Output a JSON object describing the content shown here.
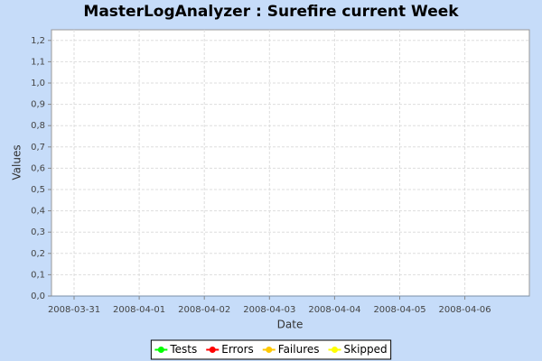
{
  "chart_data": {
    "type": "line",
    "title": "MasterLogAnalyzer : Surefire current Week",
    "x_label": "Date",
    "y_label": "Values",
    "categories": [
      "2008-03-31",
      "2008-04-01",
      "2008-04-02",
      "2008-04-03",
      "2008-04-04",
      "2008-04-05",
      "2008-04-06"
    ],
    "series": [
      {
        "name": "Tests",
        "color": "#00ff00",
        "values": [
          null,
          null,
          null,
          null,
          null,
          null,
          null
        ]
      },
      {
        "name": "Errors",
        "color": "#ff0000",
        "values": [
          null,
          null,
          null,
          null,
          null,
          null,
          null
        ]
      },
      {
        "name": "Failures",
        "color": "#ffc800",
        "values": [
          null,
          null,
          null,
          null,
          null,
          null,
          null
        ]
      },
      {
        "name": "Skipped",
        "color": "#ffff00",
        "values": [
          null,
          null,
          null,
          null,
          null,
          null,
          null
        ]
      }
    ],
    "ylim": [
      0,
      1.25
    ],
    "yticks": [
      {
        "value": 0,
        "label": "0,0"
      },
      {
        "value": 0.1,
        "label": "0,1"
      },
      {
        "value": 0.2,
        "label": "0,2"
      },
      {
        "value": 0.3,
        "label": "0,3"
      },
      {
        "value": 0.4,
        "label": "0,4"
      },
      {
        "value": 0.5,
        "label": "0,5"
      },
      {
        "value": 0.6,
        "label": "0,6"
      },
      {
        "value": 0.7,
        "label": "0,7"
      },
      {
        "value": 0.8,
        "label": "0,8"
      },
      {
        "value": 0.9,
        "label": "0,9"
      },
      {
        "value": 1.0,
        "label": "1,0"
      },
      {
        "value": 1.1,
        "label": "1,1"
      },
      {
        "value": 1.2,
        "label": "1,2"
      }
    ],
    "grid": true,
    "legend": "bottom"
  }
}
